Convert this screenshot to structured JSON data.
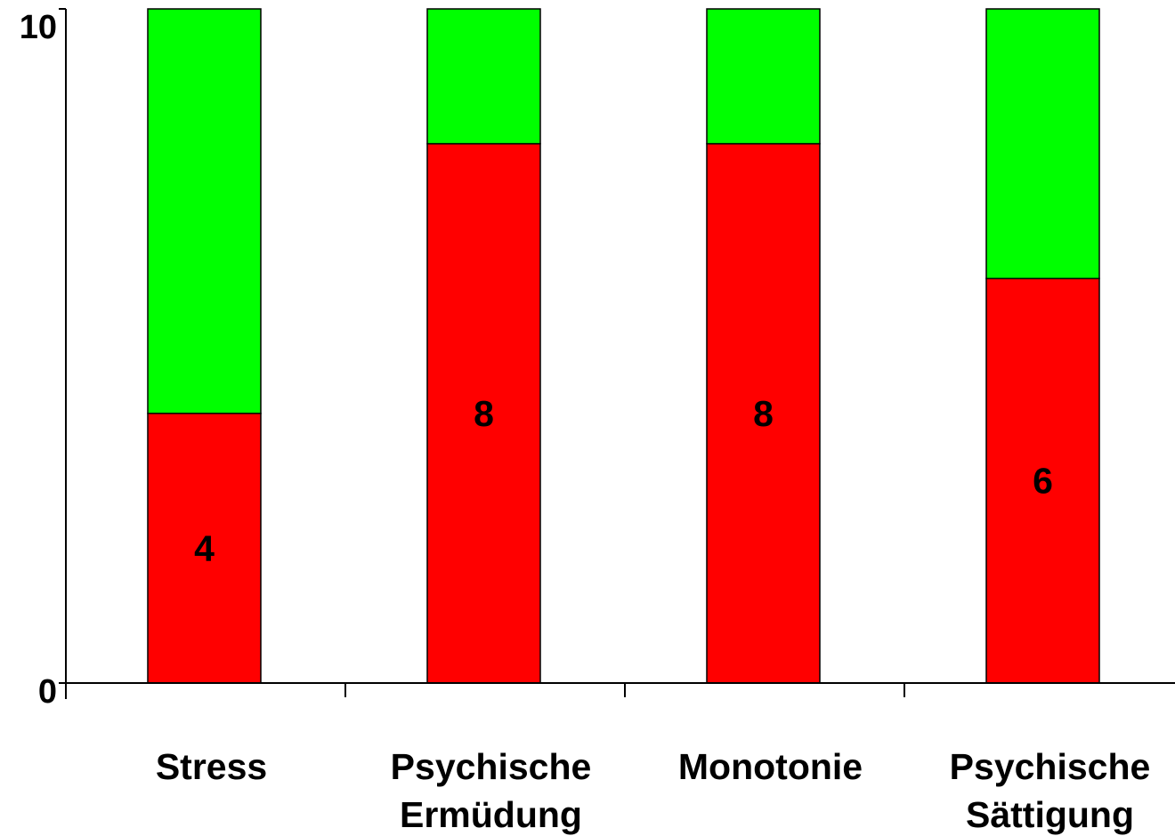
{
  "chart_data": {
    "type": "bar",
    "stacked": true,
    "categories": [
      "Stress",
      "Psychische Ermüdung",
      "Monotonie",
      "Psychische Sättigung"
    ],
    "category_label_lines": [
      [
        "Stress"
      ],
      [
        "Psychische",
        "Ermüdung"
      ],
      [
        "Monotonie"
      ],
      [
        "Psychische",
        "Sättigung"
      ]
    ],
    "series": [
      {
        "values": [
          4,
          8,
          8,
          6
        ],
        "color": "#ff0000"
      },
      {
        "values": [
          6,
          2,
          2,
          4
        ],
        "color": "#00ff00"
      }
    ],
    "data_labels": [
      "4",
      "8",
      "8",
      "6"
    ],
    "ylim": [
      0,
      10
    ],
    "yticks": [
      "0",
      "10"
    ],
    "xlabel": "",
    "ylabel": "",
    "title": "",
    "grid": false,
    "legend": false
  }
}
